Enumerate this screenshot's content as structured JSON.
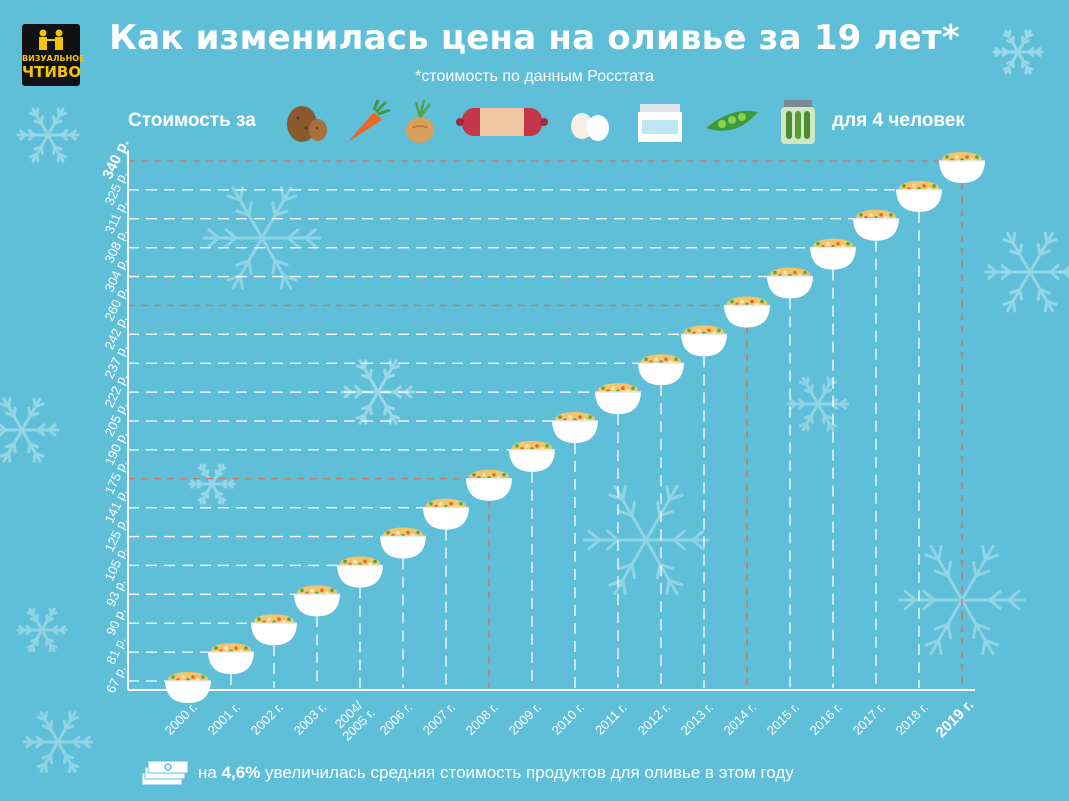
{
  "header": {
    "title": "Как изменилась цена на оливье за 19 лет*",
    "subtitle": "*стоимость по данным Росстата",
    "logo_line1": "ВИЗУАЛЬНОЕ",
    "logo_line2": "ЧТИВО"
  },
  "legend_row": {
    "prefix": "Стоимость за",
    "suffix": "для 4 человек",
    "ingredients": [
      {
        "icon": "potato-icon"
      },
      {
        "icon": "carrot-icon"
      },
      {
        "icon": "onion-icon"
      },
      {
        "icon": "sausage-icon"
      },
      {
        "icon": "eggs-icon"
      },
      {
        "icon": "mayonnaise-jar-icon"
      },
      {
        "icon": "peas-icon"
      },
      {
        "icon": "pickles-jar-icon"
      }
    ]
  },
  "footer": {
    "text_pre": "на ",
    "text_bold": "4,6%",
    "text_post": " увеличилась средняя стоимость продуктов для оливье в этом году",
    "icon": "money-stack-icon"
  },
  "colors": {
    "background": "#5fbfd8",
    "accent_line": "#d9725a",
    "bowl": "#ffffff",
    "salad": "#f2c56a"
  },
  "chart_data": {
    "type": "scatter",
    "marker": "salad-bowl",
    "categories": [
      "2000 г.",
      "2001 г.",
      "2002 г.",
      "2003 г.",
      "2004/\n2005 г.",
      "2006 г.",
      "2007 г.",
      "2008 г.",
      "2009 г.",
      "2010 г.",
      "2011 г.",
      "2012 г.",
      "2013 г.",
      "2014 г.",
      "2015 г.",
      "2016 г.",
      "2017 г.",
      "2018 г.",
      "2019 г."
    ],
    "values": [
      67,
      81,
      90,
      93,
      105,
      125,
      141,
      175,
      190,
      205,
      222,
      237,
      242,
      260,
      304,
      308,
      311,
      325,
      340
    ],
    "value_labels": [
      "67 р.",
      "81 р.",
      "90 р.",
      "93 р.",
      "105 р.",
      "125 р.",
      "141 р.",
      "175 р.",
      "190 р.",
      "205 р.",
      "222 р.",
      "237 р.",
      "242 р.",
      "260 р.",
      "304 р.",
      "308 р.",
      "311 р.",
      "325 р.",
      "340 р."
    ],
    "highlighted": [
      "2008 г.",
      "2014 г.",
      "2019 г."
    ],
    "bold": [
      "2019 г."
    ],
    "grid": "dashed guide lines"
  }
}
